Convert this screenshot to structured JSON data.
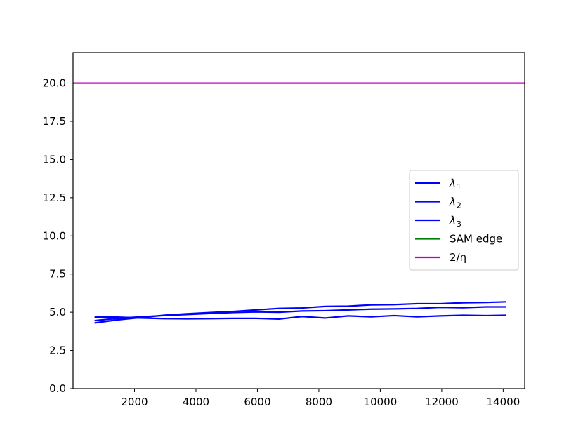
{
  "chart_data": {
    "type": "line",
    "title": "",
    "xlabel": "",
    "ylabel": "",
    "xlim": [
      0,
      14700
    ],
    "ylim": [
      0,
      22
    ],
    "grid": false,
    "legend_position": "center-right",
    "x_ticks": [
      2000,
      4000,
      6000,
      8000,
      10000,
      12000,
      14000
    ],
    "x_tick_labels": [
      "2000",
      "4000",
      "6000",
      "8000",
      "10000",
      "12000",
      "14000"
    ],
    "y_ticks": [
      0,
      2.5,
      5,
      7.5,
      10,
      12.5,
      15,
      17.5,
      20
    ],
    "y_tick_labels": [
      "0.0",
      "2.5",
      "5.0",
      "7.5",
      "10.0",
      "12.5",
      "15.0",
      "17.5",
      "20.0"
    ],
    "series": [
      {
        "name": "λ1",
        "label_main": "λ",
        "label_sub": "1",
        "color": "#0000ff",
        "x": [
          700,
          1450,
          2200,
          2950,
          3700,
          4450,
          5200,
          5950,
          6700,
          7450,
          8200,
          8950,
          9700,
          10450,
          11200,
          11950,
          12700,
          13450,
          14100
        ],
        "y": [
          4.3,
          4.5,
          4.65,
          4.8,
          4.9,
          4.98,
          5.05,
          5.15,
          5.25,
          5.28,
          5.38,
          5.4,
          5.48,
          5.5,
          5.56,
          5.56,
          5.62,
          5.64,
          5.68
        ]
      },
      {
        "name": "λ2",
        "label_main": "λ",
        "label_sub": "2",
        "color": "#0000ff",
        "x": [
          700,
          1450,
          2200,
          2950,
          3700,
          4450,
          5200,
          5950,
          6700,
          7450,
          8200,
          8950,
          9700,
          10450,
          11200,
          11950,
          12700,
          13450,
          14100
        ],
        "y": [
          4.45,
          4.6,
          4.7,
          4.78,
          4.85,
          4.92,
          4.98,
          5.02,
          5.0,
          5.08,
          5.1,
          5.15,
          5.2,
          5.22,
          5.25,
          5.32,
          5.3,
          5.35,
          5.35
        ]
      },
      {
        "name": "λ3",
        "label_main": "λ",
        "label_sub": "3",
        "color": "#0000ff",
        "x": [
          700,
          1450,
          2200,
          2950,
          3700,
          4450,
          5200,
          5950,
          6700,
          7450,
          8200,
          8950,
          9700,
          10450,
          11200,
          11950,
          12700,
          13450,
          14100
        ],
        "y": [
          4.68,
          4.68,
          4.62,
          4.58,
          4.57,
          4.58,
          4.6,
          4.6,
          4.55,
          4.72,
          4.62,
          4.76,
          4.7,
          4.78,
          4.7,
          4.76,
          4.8,
          4.78,
          4.8
        ]
      },
      {
        "name": "SAM edge",
        "label_main": "SAM edge",
        "label_sub": "",
        "color": "#008000",
        "x": [
          0,
          14700
        ],
        "y": [
          20,
          20
        ]
      },
      {
        "name": "2/η",
        "label_main": "2/η",
        "label_sub": "",
        "color": "#bf00bf",
        "x": [
          0,
          14700
        ],
        "y": [
          20,
          20
        ]
      }
    ]
  }
}
